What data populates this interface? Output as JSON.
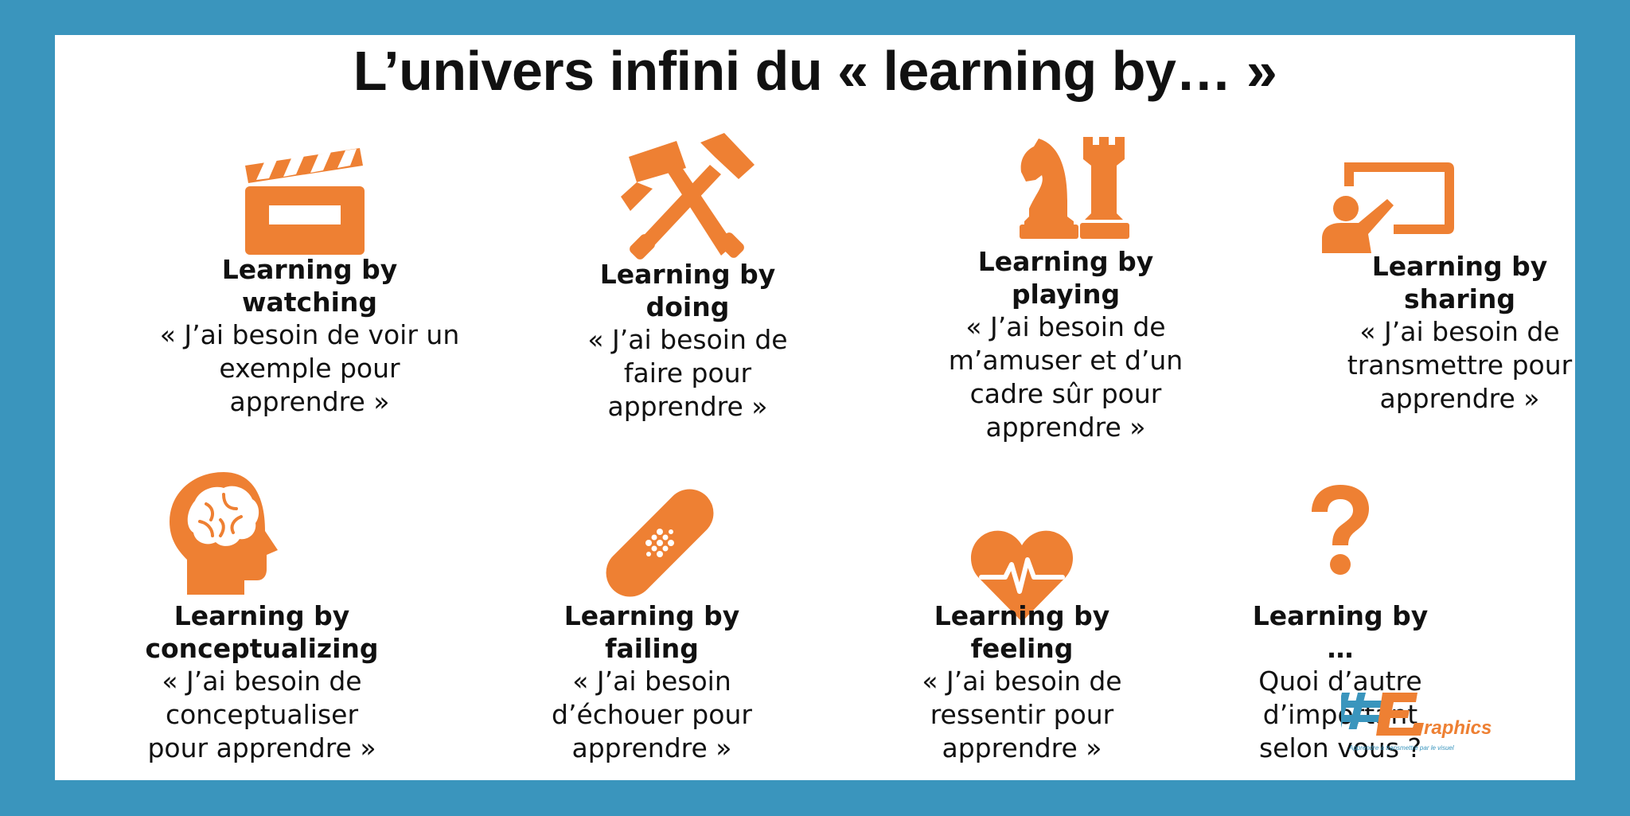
{
  "title": "L’univers infini du « learning by… »",
  "colors": {
    "accent": "#ee8033",
    "frame": "#3a95bd",
    "text": "#111111",
    "background": "#ffffff"
  },
  "cards": [
    {
      "icon": "clapperboard-icon",
      "heading_line1": "Learning by",
      "heading_line2": "watching",
      "quote_line1": "« J’ai besoin de voir un",
      "quote_line2": "exemple pour",
      "quote_line3": "apprendre »",
      "quote_line4": ""
    },
    {
      "icon": "hammers-icon",
      "heading_line1": "Learning by",
      "heading_line2": "doing",
      "quote_line1": "« J’ai besoin de",
      "quote_line2": "faire pour",
      "quote_line3": "apprendre »",
      "quote_line4": ""
    },
    {
      "icon": "chess-pieces-icon",
      "heading_line1": "Learning by",
      "heading_line2": "playing",
      "quote_line1": "« J’ai besoin de",
      "quote_line2": "m’amuser et d’un",
      "quote_line3": "cadre sûr pour",
      "quote_line4": "apprendre »"
    },
    {
      "icon": "presenter-board-icon",
      "heading_line1": "Learning by",
      "heading_line2": "sharing",
      "quote_line1": "« J’ai besoin de",
      "quote_line2": "transmettre pour",
      "quote_line3": "apprendre »",
      "quote_line4": ""
    },
    {
      "icon": "brain-head-icon",
      "heading_line1": "Learning by",
      "heading_line2": "conceptualizing",
      "quote_line1": "« J’ai besoin de",
      "quote_line2": "conceptualiser",
      "quote_line3": "pour apprendre »",
      "quote_line4": ""
    },
    {
      "icon": "bandage-icon",
      "heading_line1": "Learning by",
      "heading_line2": "failing",
      "quote_line1": "« J’ai besoin",
      "quote_line2": "d’échouer pour",
      "quote_line3": "apprendre »",
      "quote_line4": ""
    },
    {
      "icon": "heart-pulse-icon",
      "heading_line1": "Learning by",
      "heading_line2": "feeling",
      "quote_line1": "« J’ai besoin de",
      "quote_line2": "ressentir pour",
      "quote_line3": "apprendre »",
      "quote_line4": ""
    },
    {
      "icon": "question-mark-icon",
      "heading_line1": "Learning by",
      "heading_line2": "…",
      "quote_line1": "Quoi d’autre",
      "quote_line2": "d’important",
      "quote_line3": "selon vous ?",
      "quote_line4": ""
    }
  ],
  "logo": {
    "text": "#Graphics",
    "tagline": "Apprendre à transmettre par le visuel"
  }
}
